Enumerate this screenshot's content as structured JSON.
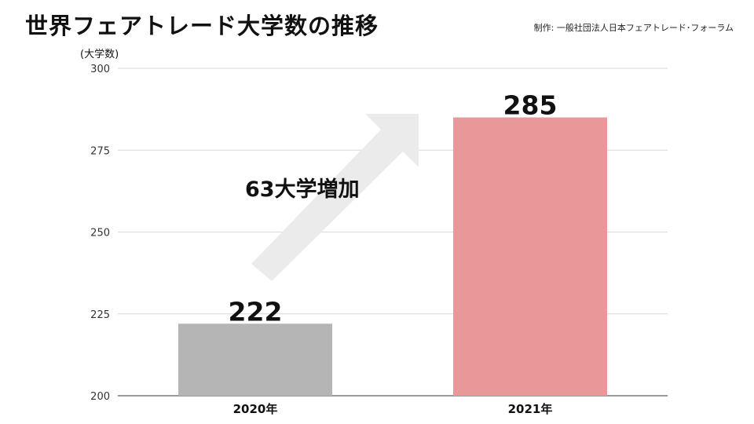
{
  "header": {
    "title": "世界フェアトレード大学数の推移",
    "credit": "制作: 一般社団法人日本フェアトレード･フォーラム"
  },
  "chart_data": {
    "type": "bar",
    "title": "世界フェアトレード大学数の推移",
    "ylabel": "(大学数)",
    "xlabel": "",
    "categories": [
      "2020年",
      "2021年"
    ],
    "values": [
      222,
      285
    ],
    "value_labels": [
      "222",
      "285"
    ],
    "colors": [
      "#b5b5b5",
      "#e89898"
    ],
    "ylim": [
      200,
      300
    ],
    "yticks": [
      200,
      225,
      250,
      275,
      300
    ],
    "grid": true,
    "annotation": {
      "text": "63大学増加",
      "style": "arrow-up-right"
    }
  }
}
